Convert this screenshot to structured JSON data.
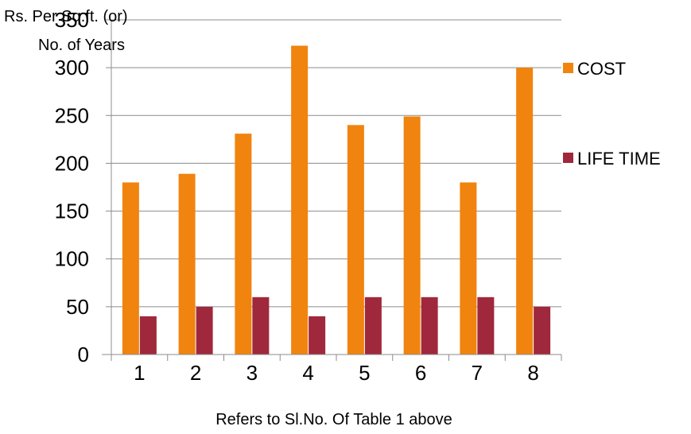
{
  "chart_data": {
    "type": "bar",
    "title": "",
    "xlabel": "Refers to Sl.No. Of Table 1 above",
    "ylabel": [
      "Rs. Per Sq.ft. (or)",
      "No. of Years"
    ],
    "categories": [
      "1",
      "2",
      "3",
      "4",
      "5",
      "6",
      "7",
      "8"
    ],
    "series": [
      {
        "name": "COST",
        "values": [
          180,
          189,
          231,
          323,
          240,
          249,
          180,
          300
        ],
        "color": "#F0840F"
      },
      {
        "name": "LIFE TIME",
        "values": [
          40,
          50,
          60,
          40,
          60,
          60,
          60,
          50
        ],
        "color": "#A0283C"
      }
    ],
    "ylim": [
      0,
      350
    ],
    "yticks": [
      0,
      50,
      100,
      150,
      200,
      250,
      300,
      350
    ],
    "grid": true,
    "legend_position": "right"
  }
}
